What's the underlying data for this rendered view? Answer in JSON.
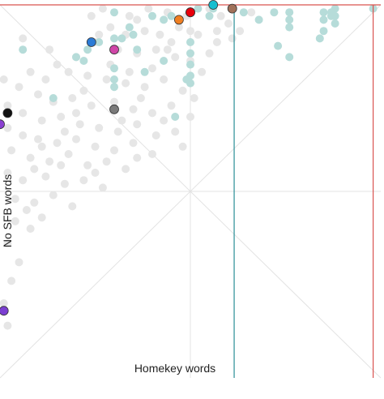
{
  "chart_data": {
    "type": "scatter",
    "xlabel": "Homekey words",
    "ylabel": "No SFB words",
    "grid": true,
    "xlim": [
      0,
      1
    ],
    "ylim": [
      0,
      1
    ],
    "reference_lines": {
      "vertical_teal_x": 0.615,
      "vertical_red_x": 0.98,
      "horizontal_red_y": 1.0
    },
    "colors": {
      "background_points": "#e6e6e6",
      "teal_points": "#b6dcd9",
      "grid": "#e3e3e3",
      "teal_line": "#2a8e96",
      "red_line": "#d9534f"
    },
    "background_points": [
      [
        0.27,
        0.99
      ],
      [
        0.34,
        0.97
      ],
      [
        0.39,
        0.99
      ],
      [
        0.44,
        0.98
      ],
      [
        0.49,
        0.97
      ],
      [
        0.55,
        0.99
      ],
      [
        0.58,
        0.97
      ],
      [
        0.61,
        0.99
      ],
      [
        0.66,
        0.98
      ],
      [
        0.29,
        0.94
      ],
      [
        0.33,
        0.92
      ],
      [
        0.38,
        0.93
      ],
      [
        0.42,
        0.92
      ],
      [
        0.47,
        0.94
      ],
      [
        0.52,
        0.92
      ],
      [
        0.57,
        0.93
      ],
      [
        0.61,
        0.91
      ],
      [
        0.25,
        0.9
      ],
      [
        0.31,
        0.88
      ],
      [
        0.36,
        0.87
      ],
      [
        0.41,
        0.88
      ],
      [
        0.46,
        0.86
      ],
      [
        0.5,
        0.85
      ],
      [
        0.55,
        0.87
      ],
      [
        0.2,
        0.86
      ],
      [
        0.15,
        0.84
      ],
      [
        0.12,
        0.8
      ],
      [
        0.18,
        0.82
      ],
      [
        0.23,
        0.81
      ],
      [
        0.28,
        0.8
      ],
      [
        0.33,
        0.79
      ],
      [
        0.38,
        0.78
      ],
      [
        0.43,
        0.8
      ],
      [
        0.48,
        0.77
      ],
      [
        0.05,
        0.78
      ],
      [
        0.1,
        0.76
      ],
      [
        0.14,
        0.74
      ],
      [
        0.19,
        0.75
      ],
      [
        0.24,
        0.73
      ],
      [
        0.3,
        0.74
      ],
      [
        0.35,
        0.72
      ],
      [
        0.4,
        0.71
      ],
      [
        0.45,
        0.73
      ],
      [
        0.5,
        0.7
      ],
      [
        0.02,
        0.73
      ],
      [
        0.06,
        0.71
      ],
      [
        0.11,
        0.69
      ],
      [
        0.16,
        0.7
      ],
      [
        0.21,
        0.68
      ],
      [
        0.26,
        0.67
      ],
      [
        0.31,
        0.66
      ],
      [
        0.36,
        0.68
      ],
      [
        0.41,
        0.65
      ],
      [
        0.46,
        0.66
      ],
      [
        0.02,
        0.67
      ],
      [
        0.06,
        0.65
      ],
      [
        0.1,
        0.64
      ],
      [
        0.15,
        0.63
      ],
      [
        0.2,
        0.64
      ],
      [
        0.25,
        0.62
      ],
      [
        0.3,
        0.61
      ],
      [
        0.35,
        0.63
      ],
      [
        0.4,
        0.6
      ],
      [
        0.03,
        0.61
      ],
      [
        0.08,
        0.59
      ],
      [
        0.13,
        0.58
      ],
      [
        0.18,
        0.6
      ],
      [
        0.23,
        0.57
      ],
      [
        0.28,
        0.58
      ],
      [
        0.33,
        0.56
      ],
      [
        0.02,
        0.55
      ],
      [
        0.06,
        0.53
      ],
      [
        0.12,
        0.54
      ],
      [
        0.17,
        0.52
      ],
      [
        0.22,
        0.53
      ],
      [
        0.27,
        0.51
      ],
      [
        0.04,
        0.48
      ],
      [
        0.09,
        0.47
      ],
      [
        0.14,
        0.49
      ],
      [
        0.19,
        0.46
      ],
      [
        0.04,
        0.42
      ],
      [
        0.08,
        0.4
      ],
      [
        0.02,
        0.36
      ],
      [
        0.05,
        0.31
      ],
      [
        0.03,
        0.26
      ],
      [
        0.01,
        0.2
      ],
      [
        0.02,
        0.14
      ],
      [
        0.07,
        0.45
      ],
      [
        0.11,
        0.43
      ],
      [
        0.24,
        0.97
      ],
      [
        0.36,
        0.96
      ],
      [
        0.5,
        0.93
      ],
      [
        0.6,
        0.95
      ],
      [
        0.44,
        0.88
      ],
      [
        0.53,
        0.82
      ],
      [
        0.22,
        0.77
      ],
      [
        0.37,
        0.75
      ],
      [
        0.48,
        0.62
      ],
      [
        0.32,
        0.69
      ],
      [
        0.17,
        0.66
      ],
      [
        0.09,
        0.56
      ],
      [
        0.25,
        0.55
      ],
      [
        0.36,
        0.59
      ],
      [
        0.43,
        0.69
      ],
      [
        0.16,
        0.57
      ],
      [
        0.45,
        0.9
      ],
      [
        0.4,
        0.83
      ],
      [
        0.57,
        0.9
      ],
      [
        0.63,
        0.93
      ],
      [
        0.29,
        0.84
      ],
      [
        0.13,
        0.88
      ],
      [
        0.08,
        0.82
      ],
      [
        0.01,
        0.8
      ],
      [
        0.2,
        0.71
      ],
      [
        0.34,
        0.82
      ],
      [
        0.51,
        0.75
      ],
      [
        0.06,
        0.91
      ],
      [
        0.26,
        0.92
      ],
      [
        0.11,
        0.62
      ]
    ],
    "teal_points": [
      [
        0.3,
        0.98
      ],
      [
        0.34,
        0.94
      ],
      [
        0.4,
        0.97
      ],
      [
        0.43,
        0.96
      ],
      [
        0.45,
        0.97
      ],
      [
        0.52,
        0.99
      ],
      [
        0.55,
        0.97
      ],
      [
        0.56,
        0.99
      ],
      [
        0.72,
        0.98
      ],
      [
        0.68,
        0.96
      ],
      [
        0.76,
        0.98
      ],
      [
        0.76,
        0.96
      ],
      [
        0.76,
        0.94
      ],
      [
        0.85,
        0.98
      ],
      [
        0.85,
        0.96
      ],
      [
        0.87,
        0.98
      ],
      [
        0.87,
        0.97
      ],
      [
        0.88,
        0.99
      ],
      [
        0.88,
        0.97
      ],
      [
        0.98,
        0.99
      ],
      [
        0.88,
        0.95
      ],
      [
        0.85,
        0.93
      ],
      [
        0.84,
        0.91
      ],
      [
        0.76,
        0.86
      ],
      [
        0.73,
        0.89
      ],
      [
        0.35,
        0.92
      ],
      [
        0.3,
        0.91
      ],
      [
        0.26,
        0.9
      ],
      [
        0.23,
        0.88
      ],
      [
        0.2,
        0.86
      ],
      [
        0.22,
        0.85
      ],
      [
        0.3,
        0.83
      ],
      [
        0.3,
        0.8
      ],
      [
        0.3,
        0.78
      ],
      [
        0.32,
        0.91
      ],
      [
        0.36,
        0.88
      ],
      [
        0.5,
        0.9
      ],
      [
        0.5,
        0.87
      ],
      [
        0.5,
        0.84
      ],
      [
        0.5,
        0.81
      ],
      [
        0.5,
        0.79
      ],
      [
        0.49,
        0.8
      ],
      [
        0.38,
        0.82
      ],
      [
        0.43,
        0.85
      ],
      [
        0.46,
        0.7
      ],
      [
        0.14,
        0.75
      ],
      [
        0.06,
        0.88
      ],
      [
        0.64,
        0.98
      ]
    ],
    "highlighted_points": [
      {
        "x": 0.5,
        "y": 0.98,
        "color": "#2ca02c"
      },
      {
        "x": 0.5,
        "y": 0.98,
        "color": "#e8000b"
      },
      {
        "x": 0.47,
        "y": 0.96,
        "color": "#f07f22"
      },
      {
        "x": 0.56,
        "y": 1.0,
        "color": "#17becf"
      },
      {
        "x": 0.61,
        "y": 0.99,
        "color": "#a0715a"
      },
      {
        "x": 0.24,
        "y": 0.9,
        "color": "#2b7bd6"
      },
      {
        "x": 0.3,
        "y": 0.88,
        "color": "#d046a8"
      },
      {
        "x": 0.3,
        "y": 0.72,
        "color": "#7a7a7a"
      },
      {
        "x": 0.02,
        "y": 0.71,
        "color": "#111111"
      },
      {
        "x": 0.0,
        "y": 0.68,
        "color": "#8a3fd1"
      },
      {
        "x": 0.01,
        "y": 0.18,
        "color": "#7b3fd1"
      }
    ]
  }
}
